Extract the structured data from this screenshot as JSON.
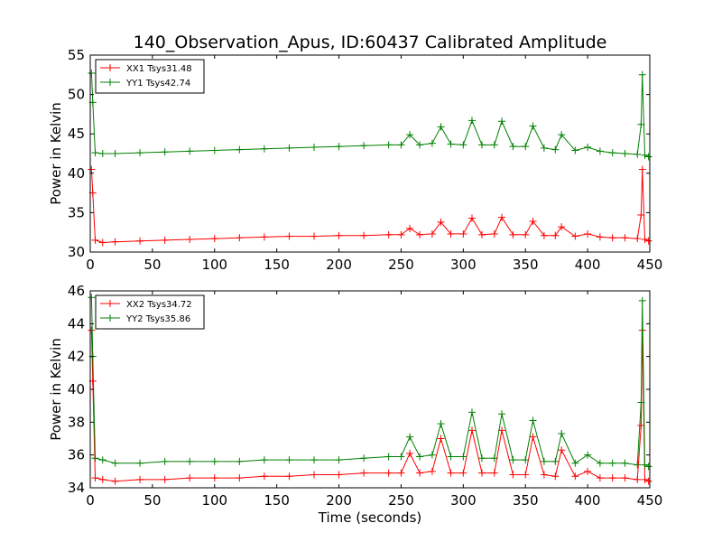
{
  "title": "140_Observation_Apus, ID:60437 Calibrated Amplitude",
  "colors": {
    "red": "#ff0000",
    "green": "#008000"
  },
  "chart_data": [
    {
      "type": "line",
      "ylabel": "Power in Kelvin",
      "xlabel": "",
      "xlim": [
        0,
        450
      ],
      "ylim": [
        30,
        55
      ],
      "xticks": [
        0,
        50,
        100,
        150,
        200,
        250,
        300,
        350,
        400,
        450
      ],
      "yticks": [
        30,
        35,
        40,
        45,
        50,
        55
      ],
      "legend_position": "top-left",
      "series": [
        {
          "name": "XX1 Tsys31.48",
          "color": "#ff0000",
          "x": [
            1,
            2,
            4,
            10,
            20,
            40,
            60,
            80,
            100,
            120,
            140,
            160,
            180,
            200,
            220,
            240,
            250,
            257,
            265,
            275,
            282,
            290,
            300,
            307,
            315,
            325,
            331,
            340,
            350,
            356,
            365,
            374,
            379,
            390,
            400,
            410,
            420,
            430,
            440,
            443,
            444,
            446,
            449
          ],
          "y": [
            40.5,
            37.5,
            31.5,
            31.2,
            31.3,
            31.4,
            31.5,
            31.6,
            31.7,
            31.8,
            31.9,
            32.0,
            32.0,
            32.1,
            32.1,
            32.2,
            32.2,
            33.0,
            32.2,
            32.3,
            33.8,
            32.3,
            32.3,
            34.3,
            32.2,
            32.3,
            34.4,
            32.2,
            32.2,
            33.9,
            32.1,
            32.1,
            33.2,
            32.0,
            32.3,
            31.9,
            31.8,
            31.8,
            31.7,
            34.7,
            40.5,
            31.6,
            31.4
          ]
        },
        {
          "name": "YY1 Tsys42.74",
          "color": "#008000",
          "x": [
            1,
            2,
            4,
            10,
            20,
            40,
            60,
            80,
            100,
            120,
            140,
            160,
            180,
            200,
            220,
            240,
            250,
            257,
            265,
            275,
            282,
            290,
            300,
            307,
            315,
            325,
            331,
            340,
            350,
            356,
            365,
            374,
            379,
            390,
            400,
            410,
            420,
            430,
            440,
            443,
            444,
            446,
            449
          ],
          "y": [
            52.7,
            49.0,
            42.6,
            42.5,
            42.5,
            42.6,
            42.7,
            42.8,
            42.9,
            43.0,
            43.1,
            43.2,
            43.3,
            43.4,
            43.5,
            43.6,
            43.6,
            44.9,
            43.6,
            43.8,
            45.9,
            43.7,
            43.6,
            46.7,
            43.6,
            43.6,
            46.6,
            43.4,
            43.4,
            46.0,
            43.2,
            43.0,
            44.9,
            42.9,
            43.3,
            42.8,
            42.6,
            42.5,
            42.4,
            46.2,
            52.5,
            42.3,
            42.1
          ]
        }
      ]
    },
    {
      "type": "line",
      "ylabel": "Power in Kelvin",
      "xlabel": "Time (seconds)",
      "xlim": [
        0,
        450
      ],
      "ylim": [
        34,
        46
      ],
      "xticks": [
        0,
        50,
        100,
        150,
        200,
        250,
        300,
        350,
        400,
        450
      ],
      "yticks": [
        34,
        36,
        38,
        40,
        42,
        44,
        46
      ],
      "legend_position": "top-left",
      "series": [
        {
          "name": "XX2 Tsys34.72",
          "color": "#ff0000",
          "x": [
            1,
            2,
            4,
            10,
            20,
            40,
            60,
            80,
            100,
            120,
            140,
            160,
            180,
            200,
            220,
            240,
            250,
            257,
            265,
            275,
            282,
            290,
            300,
            307,
            315,
            325,
            331,
            340,
            350,
            356,
            365,
            374,
            379,
            390,
            400,
            410,
            420,
            430,
            440,
            443,
            444,
            446,
            449
          ],
          "y": [
            43.6,
            40.5,
            34.6,
            34.5,
            34.4,
            34.5,
            34.5,
            34.6,
            34.6,
            34.6,
            34.7,
            34.7,
            34.8,
            34.8,
            34.9,
            34.9,
            34.9,
            36.1,
            34.9,
            35.0,
            37.0,
            34.9,
            34.9,
            37.5,
            34.9,
            34.9,
            37.5,
            34.8,
            34.8,
            37.1,
            34.8,
            34.7,
            36.3,
            34.7,
            35.0,
            34.6,
            34.6,
            34.6,
            34.5,
            37.8,
            43.6,
            34.5,
            34.4
          ]
        },
        {
          "name": "YY2 Tsys35.86",
          "color": "#008000",
          "x": [
            1,
            2,
            4,
            10,
            20,
            40,
            60,
            80,
            100,
            120,
            140,
            160,
            180,
            200,
            220,
            240,
            250,
            257,
            265,
            275,
            282,
            290,
            300,
            307,
            315,
            325,
            331,
            340,
            350,
            356,
            365,
            374,
            379,
            390,
            400,
            410,
            420,
            430,
            440,
            443,
            444,
            446,
            449
          ],
          "y": [
            45.6,
            42.0,
            35.8,
            35.7,
            35.5,
            35.5,
            35.6,
            35.6,
            35.6,
            35.6,
            35.7,
            35.7,
            35.7,
            35.7,
            35.8,
            35.9,
            35.9,
            37.1,
            35.9,
            36.0,
            37.9,
            35.9,
            35.9,
            38.6,
            35.8,
            35.8,
            38.5,
            35.7,
            35.7,
            38.1,
            35.6,
            35.6,
            37.3,
            35.5,
            36.0,
            35.5,
            35.5,
            35.5,
            35.4,
            39.2,
            45.4,
            35.4,
            35.3
          ]
        }
      ]
    }
  ]
}
